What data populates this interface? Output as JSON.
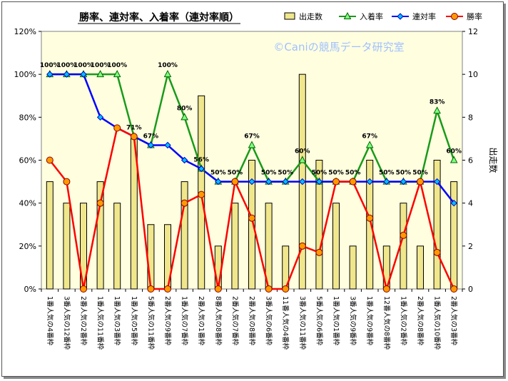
{
  "chart_data": {
    "type": "bar+line",
    "title": "勝率、連対率、入着率（連対率順）",
    "watermark": "©Caniの競馬データ研究室",
    "y2label": "出走数",
    "ylim": [
      0,
      1.2
    ],
    "y_ticks": [
      "0%",
      "20%",
      "40%",
      "60%",
      "80%",
      "100%",
      "120%"
    ],
    "y2lim": [
      0,
      12
    ],
    "y2_ticks": [
      "0",
      "2",
      "4",
      "6",
      "8",
      "10",
      "12"
    ],
    "categories": [
      "1番人気の4番枠",
      "3番人気の12番枠",
      "2番人気の2番枠",
      "1番人気の11番枠",
      "1番人気の3番枠",
      "1番人気の5番枠",
      "5番人気の11番枠",
      "2番人気の9番枠",
      "1番人気の7番枠",
      "2番人気の1番枠",
      "8番人気の8番枠",
      "2番人気の7番枠",
      "2番人気の8番枠",
      "3番人気の6番枠",
      "11番人気の4番枠",
      "3番人気の11番枠",
      "5番人気の6番枠",
      "1番人気の1番枠",
      "3番人気の9番枠",
      "1番人気の9番枠",
      "12番人気の8番枠",
      "1番人気の2番枠",
      "2番人気の8番枠",
      "1番人気の10番枠",
      "2番人気の3番枠"
    ],
    "series": [
      {
        "name": "出走数",
        "type": "bar",
        "axis": "right",
        "color": "#f0e68c",
        "values": [
          5,
          4,
          4,
          5,
          4,
          7,
          3,
          3,
          5,
          9,
          2,
          4,
          6,
          4,
          2,
          10,
          6,
          4,
          2,
          6,
          2,
          4,
          2,
          6,
          5
        ]
      },
      {
        "name": "入着率",
        "type": "line",
        "axis": "left",
        "color": "#1a9a1a",
        "marker": "triangle",
        "values": [
          1.0,
          1.0,
          1.0,
          1.0,
          1.0,
          0.71,
          0.67,
          1.0,
          0.8,
          0.56,
          0.5,
          0.5,
          0.67,
          0.5,
          0.5,
          0.6,
          0.5,
          0.5,
          0.5,
          0.67,
          0.5,
          0.5,
          0.5,
          0.83,
          0.6
        ]
      },
      {
        "name": "連対率",
        "type": "line",
        "axis": "left",
        "color": "#0000ff",
        "marker": "diamond",
        "values": [
          1.0,
          1.0,
          1.0,
          0.8,
          0.75,
          0.71,
          0.67,
          0.67,
          0.6,
          0.56,
          0.5,
          0.5,
          0.5,
          0.5,
          0.5,
          0.5,
          0.5,
          0.5,
          0.5,
          0.5,
          0.5,
          0.5,
          0.5,
          0.5,
          0.4
        ]
      },
      {
        "name": "勝率",
        "type": "line",
        "axis": "left",
        "color": "#ff0000",
        "marker": "circle",
        "values": [
          0.6,
          0.5,
          0.0,
          0.4,
          0.75,
          0.71,
          0.0,
          0.0,
          0.4,
          0.44,
          0.0,
          0.5,
          0.33,
          0.0,
          0.0,
          0.2,
          0.17,
          0.5,
          0.5,
          0.33,
          0.0,
          0.25,
          0.5,
          0.17,
          0.0
        ]
      }
    ],
    "data_labels": [
      "100%",
      "100%",
      "100%",
      "100%",
      "100%",
      "71%",
      "67%",
      "100%",
      "80%",
      "56%",
      "50%",
      "50%",
      "67%",
      "50%",
      "50%",
      "60%",
      "50%",
      "50%",
      "50%",
      "67%",
      "50%",
      "50%",
      "50%",
      "83%",
      "60%"
    ],
    "legend_position": "top-right",
    "grid": false,
    "colors": {
      "background": "#ffffe0",
      "page": "#ffffff"
    }
  }
}
